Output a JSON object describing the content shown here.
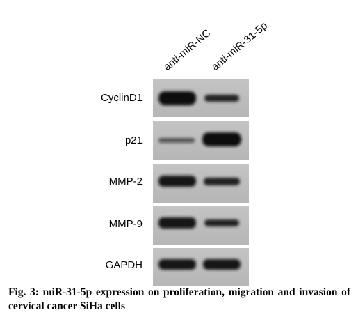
{
  "column_labels": [
    "anti-miR-NC",
    "anti-miR-31-5p"
  ],
  "row_labels": [
    "CyclinD1",
    "p21",
    "MMP-2",
    "MMP-9",
    "GAPDH"
  ],
  "caption": "Fig. 3: miR-31-5p expression on proliferation, migration and invasion of cervical cancer SiHa cells"
}
